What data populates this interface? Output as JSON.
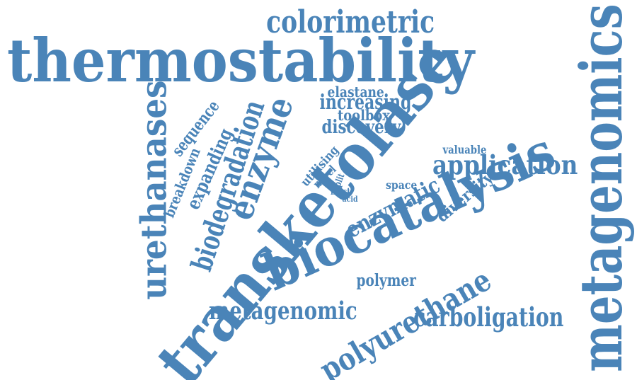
{
  "color": "#4a84b8",
  "words": [
    {
      "id": "thermostability",
      "text": "thermostability"
    },
    {
      "id": "transketolase",
      "text": "transketolase"
    },
    {
      "id": "metagenomics",
      "text": "metagenomics"
    },
    {
      "id": "biocatalysis",
      "text": "biocatalysis"
    },
    {
      "id": "colorimetric",
      "text": "colorimetric"
    },
    {
      "id": "urethanases",
      "text": "urethanases"
    },
    {
      "id": "polyurethane",
      "text": "polyurethane"
    },
    {
      "id": "carboligation",
      "text": "carboligation"
    },
    {
      "id": "metagenomic",
      "text": "metagenomic"
    },
    {
      "id": "enzyme",
      "text": "enzyme"
    },
    {
      "id": "biodegradation",
      "text": "biodegradation"
    },
    {
      "id": "application",
      "text": "application"
    },
    {
      "id": "enzymatic",
      "text": "enzymatic"
    },
    {
      "id": "increasing",
      "text": "increasing"
    },
    {
      "id": "discovery",
      "text": "discovery"
    },
    {
      "id": "expanding",
      "text": "expanding"
    },
    {
      "id": "sequence",
      "text": "sequence"
    },
    {
      "id": "breakdown",
      "text": "breakdown"
    },
    {
      "id": "diversity",
      "text": "diversity"
    },
    {
      "id": "polymer",
      "text": "polymer"
    },
    {
      "id": "toolbox",
      "text": "toolbox"
    },
    {
      "id": "elastane",
      "text": "elastane"
    },
    {
      "id": "utilising",
      "text": "utilising"
    },
    {
      "id": "valuable",
      "text": "valuable"
    },
    {
      "id": "novel",
      "text": "novel"
    },
    {
      "id": "space",
      "text": "space"
    },
    {
      "id": "split",
      "text": "split"
    },
    {
      "id": "most",
      "text": "most"
    },
    {
      "id": "acid",
      "text": "acid"
    }
  ]
}
